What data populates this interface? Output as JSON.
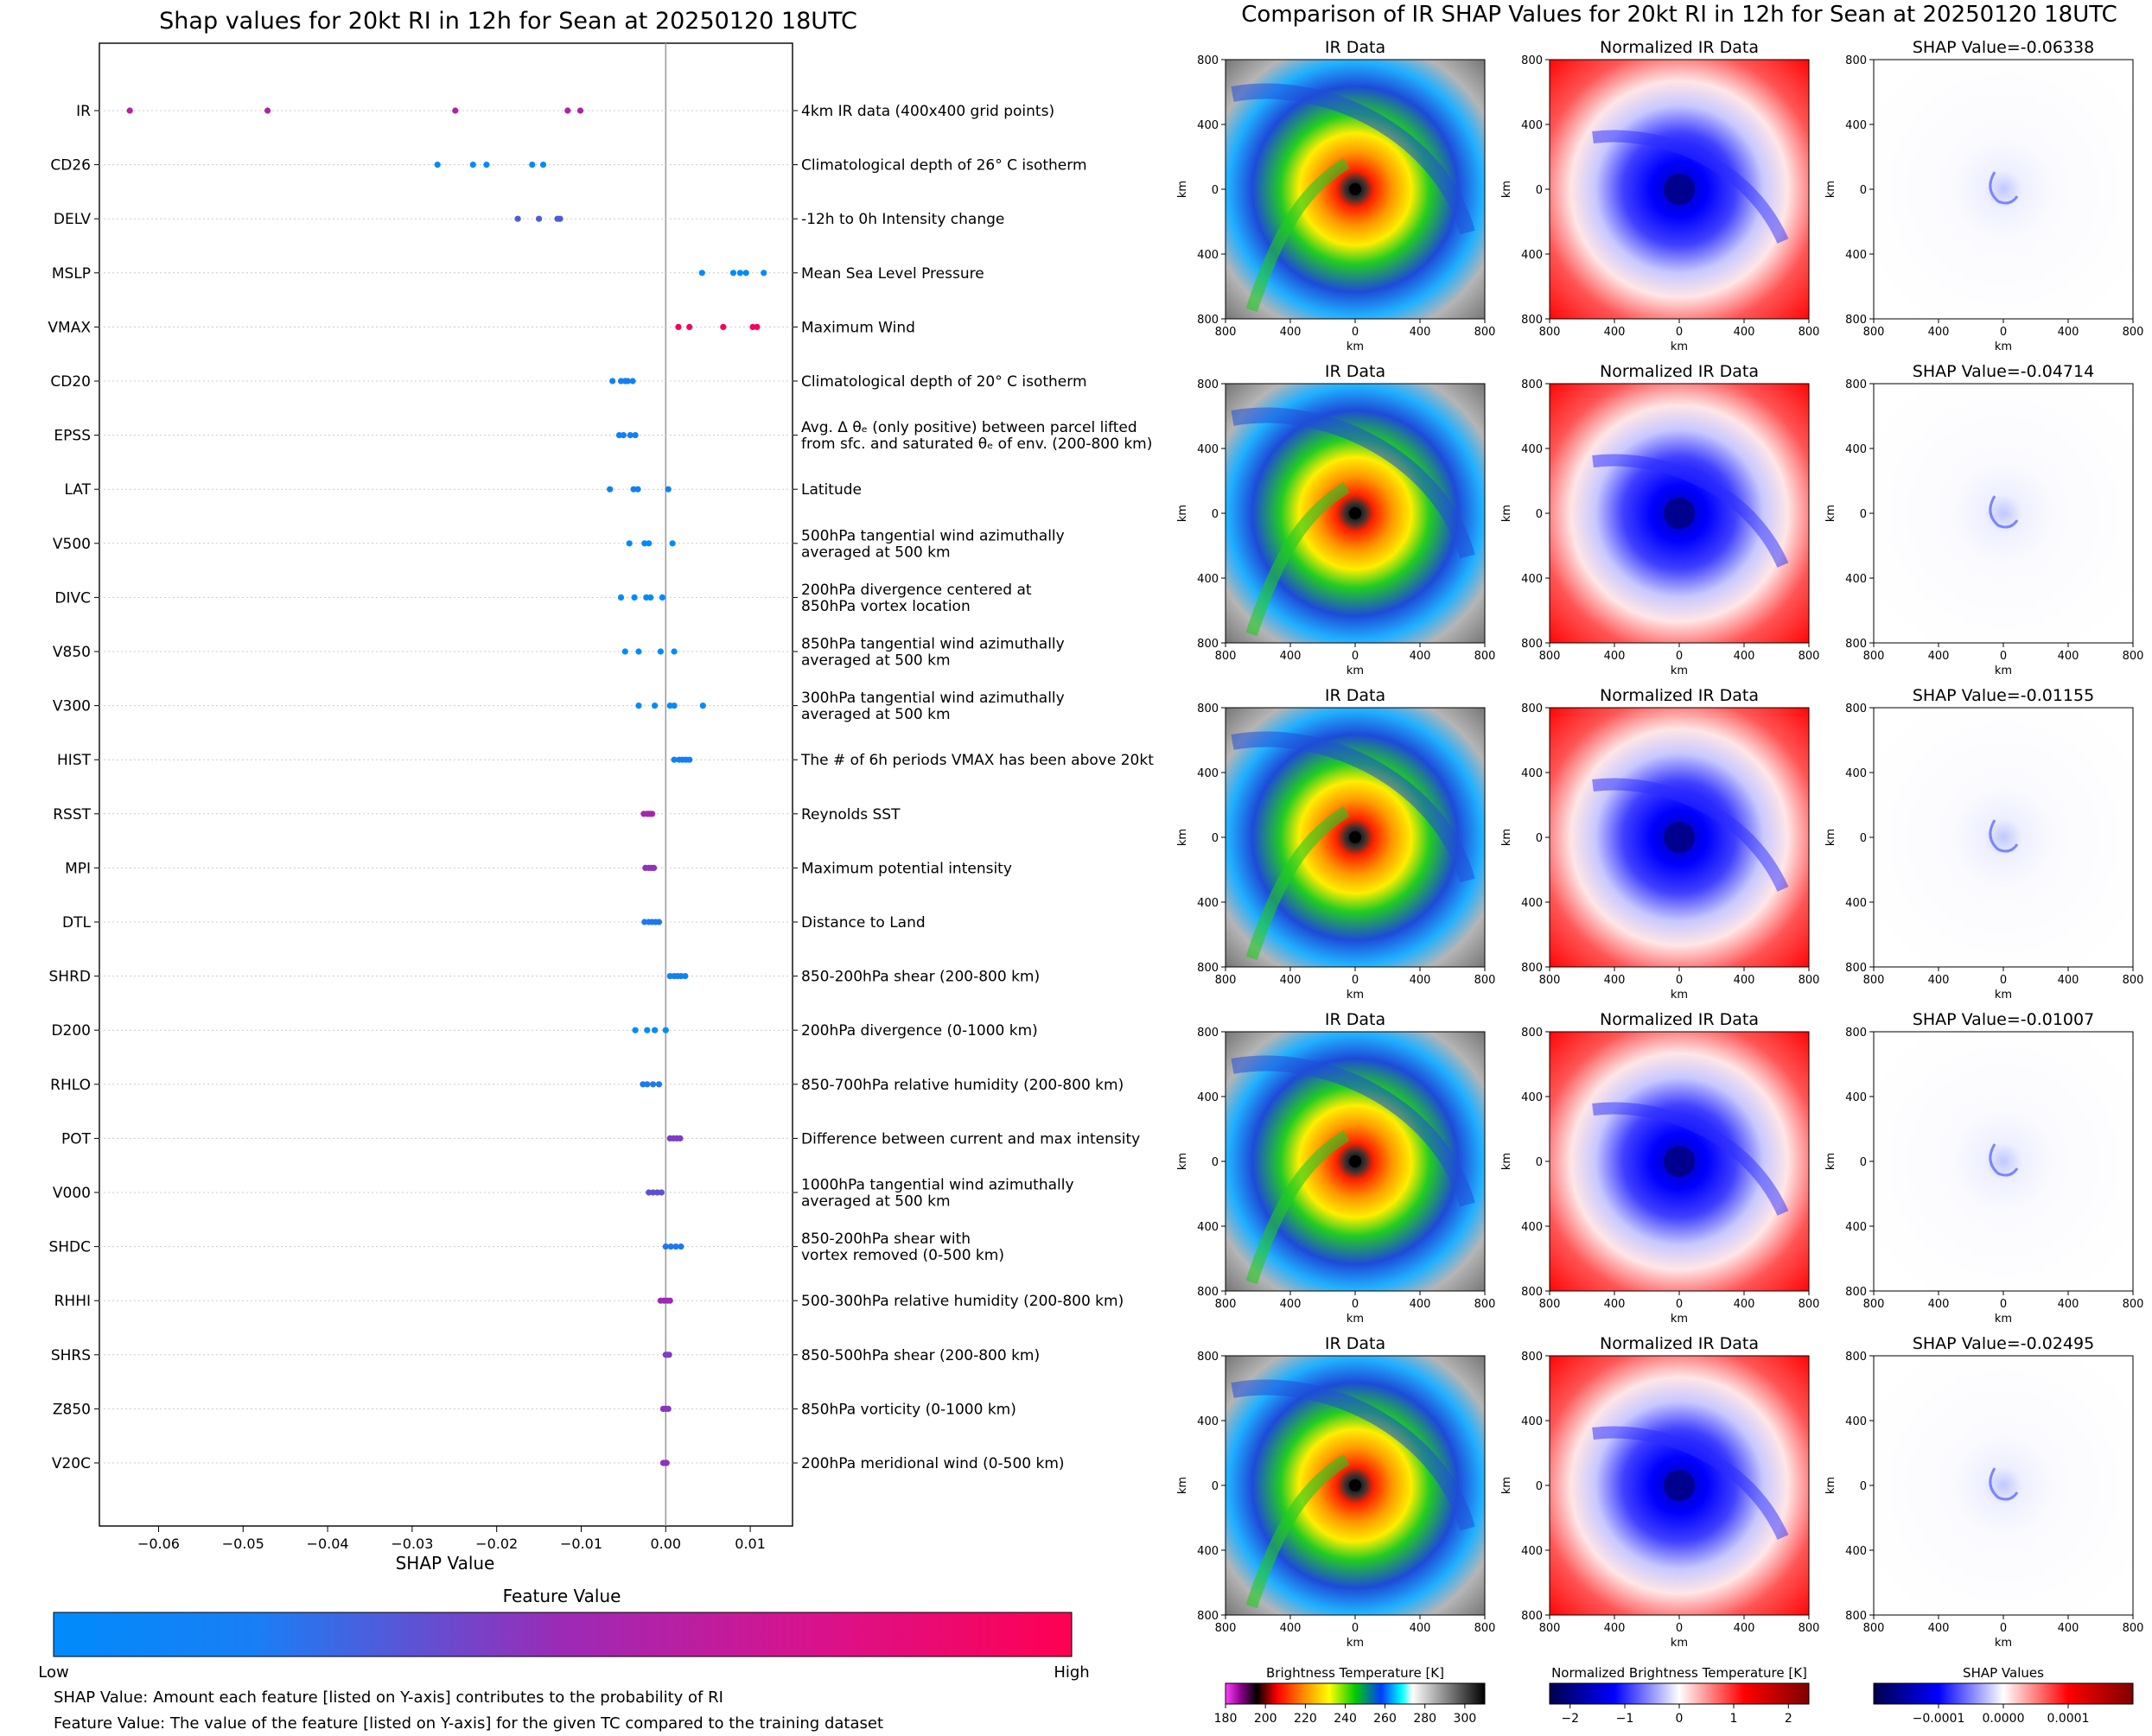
{
  "left": {
    "title": "Shap values for 20kt RI in 12h for Sean at 20250120 18UTC",
    "xlabel": "SHAP Value",
    "colorbar": {
      "title": "Feature Value",
      "low": "Low",
      "high": "High"
    },
    "notes": [
      "SHAP Value: Amount each feature [listed on Y-axis] contributes to the probability of RI",
      "Feature Value: The value of the feature [listed on Y-axis] for the given TC compared to the training dataset"
    ]
  },
  "right": {
    "title": "Comparison of IR SHAP Values for 20kt RI in 12h for Sean at 20250120 18UTC",
    "col_titles": [
      "IR Data",
      "Normalized IR Data"
    ],
    "shap_titles": [
      "SHAP Value=-0.06338",
      "SHAP Value=-0.04714",
      "SHAP Value=-0.01155",
      "SHAP Value=-0.01007",
      "SHAP Value=-0.02495"
    ],
    "axis_label": "km",
    "ticks": [
      "800",
      "400",
      "0",
      "400",
      "800"
    ],
    "colorbars": [
      {
        "label": "Brightness Temperature [K]",
        "ticks": [
          "180",
          "200",
          "220",
          "240",
          "260",
          "280",
          "300"
        ]
      },
      {
        "label": "Normalized Brightness Temperature [K]",
        "ticks": [
          "−2",
          "−1",
          "0",
          "1",
          "2"
        ]
      },
      {
        "label": "SHAP Values",
        "ticks": [
          "−0.0001",
          "0.0000",
          "0.0001"
        ]
      }
    ]
  },
  "chart_data": [
    {
      "type": "scatter",
      "title": "Shap values for 20kt RI in 12h for Sean at 20250120 18UTC",
      "xlabel": "SHAP Value",
      "ylabel": "",
      "xlim": [
        -0.067,
        0.015
      ],
      "xticks": [
        -0.06,
        -0.05,
        -0.04,
        -0.03,
        -0.02,
        -0.01,
        0.0,
        0.01
      ],
      "xtick_labels": [
        "−0.06",
        "−0.05",
        "−0.04",
        "−0.03",
        "−0.02",
        "−0.01",
        "0.00",
        "0.01"
      ],
      "color_low": "#008bfb",
      "color_high": "#ff0052",
      "features": [
        {
          "name": "IR",
          "desc": [
            "4km IR data (400x400 grid points)"
          ],
          "shap": [
            -0.0634,
            -0.0471,
            -0.0249,
            -0.0116,
            -0.0101
          ],
          "fv": 0.6
        },
        {
          "name": "CD26",
          "desc": [
            "Climatological depth of 26° C isotherm"
          ],
          "shap": [
            -0.027,
            -0.0228,
            -0.0212,
            -0.0158,
            -0.0145
          ],
          "fv": 0.0
        },
        {
          "name": "DELV",
          "desc": [
            "-12h to 0h Intensity change"
          ],
          "shap": [
            -0.0175,
            -0.015,
            -0.0128,
            -0.0125
          ],
          "fv": 0.25
        },
        {
          "name": "MSLP",
          "desc": [
            "Mean Sea Level Pressure"
          ],
          "shap": [
            0.0043,
            0.008,
            0.0088,
            0.0095,
            0.0116
          ],
          "fv": 0.0
        },
        {
          "name": "VMAX",
          "desc": [
            "Maximum Wind"
          ],
          "shap": [
            0.0015,
            0.0028,
            0.0068,
            0.0103,
            0.0108
          ],
          "fv": 0.95
        },
        {
          "name": "CD20",
          "desc": [
            "Climatological depth of 20° C isotherm"
          ],
          "shap": [
            -0.0063,
            -0.0053,
            -0.0048,
            -0.0045,
            -0.0039
          ],
          "fv": 0.05
        },
        {
          "name": "EPSS",
          "desc": [
            "Avg. Δ θₑ (only positive) between parcel lifted",
            "from sfc. and saturated θₑ of env. (200-800 km)"
          ],
          "shap": [
            -0.0055,
            -0.005,
            -0.0042,
            -0.0036
          ],
          "fv": 0.05
        },
        {
          "name": "LAT",
          "desc": [
            "Latitude"
          ],
          "shap": [
            -0.0066,
            -0.0038,
            -0.0033,
            0.0003
          ],
          "fv": 0.05
        },
        {
          "name": "V500",
          "desc": [
            "500hPa tangential wind azimuthally",
            "averaged at 500 km"
          ],
          "shap": [
            -0.0043,
            -0.0025,
            -0.002,
            0.0008
          ],
          "fv": 0.0
        },
        {
          "name": "DIVC",
          "desc": [
            "200hPa divergence centered at",
            "850hPa vortex location"
          ],
          "shap": [
            -0.0053,
            -0.0037,
            -0.0023,
            -0.0018,
            -0.0004
          ],
          "fv": 0.0
        },
        {
          "name": "V850",
          "desc": [
            "850hPa tangential wind azimuthally",
            "averaged at 500 km"
          ],
          "shap": [
            -0.0048,
            -0.0032,
            -0.0006,
            0.001
          ],
          "fv": 0.0
        },
        {
          "name": "V300",
          "desc": [
            "300hPa tangential wind azimuthally",
            "averaged at 500 km"
          ],
          "shap": [
            -0.0032,
            -0.0013,
            0.0005,
            0.001,
            0.0044
          ],
          "fv": 0.0
        },
        {
          "name": "HIST",
          "desc": [
            "The # of 6h periods VMAX has been above 20kt"
          ],
          "shap": [
            0.001,
            0.0016,
            0.002,
            0.0024,
            0.0028
          ],
          "fv": 0.05
        },
        {
          "name": "RSST",
          "desc": [
            "Reynolds SST"
          ],
          "shap": [
            -0.0026,
            -0.0022,
            -0.002,
            -0.0018,
            -0.0016
          ],
          "fv": 0.55
        },
        {
          "name": "MPI",
          "desc": [
            "Maximum potential intensity"
          ],
          "shap": [
            -0.0024,
            -0.002,
            -0.0017,
            -0.0014
          ],
          "fv": 0.45
        },
        {
          "name": "DTL",
          "desc": [
            "Distance to Land"
          ],
          "shap": [
            -0.0025,
            -0.002,
            -0.0016,
            -0.0012,
            -0.0008
          ],
          "fv": 0.1
        },
        {
          "name": "SHRD",
          "desc": [
            "850-200hPa shear (200-800 km)"
          ],
          "shap": [
            0.0005,
            0.001,
            0.0014,
            0.0018,
            0.0023
          ],
          "fv": 0.05
        },
        {
          "name": "D200",
          "desc": [
            "200hPa divergence (0-1000 km)"
          ],
          "shap": [
            -0.0036,
            -0.0022,
            -0.0013,
            0.0
          ],
          "fv": 0.0
        },
        {
          "name": "RHLO",
          "desc": [
            "850-700hPa relative humidity (200-800 km)"
          ],
          "shap": [
            -0.0027,
            -0.0022,
            -0.0015,
            -0.0008
          ],
          "fv": 0.1
        },
        {
          "name": "POT",
          "desc": [
            "Difference between current and max intensity"
          ],
          "shap": [
            0.0005,
            0.0009,
            0.0013,
            0.0017
          ],
          "fv": 0.4
        },
        {
          "name": "V000",
          "desc": [
            "1000hPa tangential wind azimuthally",
            "averaged at 500 km"
          ],
          "shap": [
            -0.002,
            -0.0015,
            -0.001,
            -0.0005
          ],
          "fv": 0.3
        },
        {
          "name": "SHDC",
          "desc": [
            "850-200hPa shear with",
            "vortex removed (0-500 km)"
          ],
          "shap": [
            0.0,
            0.0006,
            0.0012,
            0.0018
          ],
          "fv": 0.1
        },
        {
          "name": "RHHI",
          "desc": [
            "500-300hPa relative humidity (200-800 km)"
          ],
          "shap": [
            -0.0006,
            -0.0002,
            0.0002,
            0.0005
          ],
          "fv": 0.5
        },
        {
          "name": "SHRS",
          "desc": [
            "850-500hPa shear (200-800 km)"
          ],
          "shap": [
            0.0,
            0.0002,
            0.0004
          ],
          "fv": 0.4
        },
        {
          "name": "Z850",
          "desc": [
            "850hPa vorticity (0-1000 km)"
          ],
          "shap": [
            -0.0003,
            0.0,
            0.0003
          ],
          "fv": 0.45
        },
        {
          "name": "V20C",
          "desc": [
            "200hPa meridional wind (0-500 km)"
          ],
          "shap": [
            -0.0003,
            -0.0001,
            0.0001
          ],
          "fv": 0.45
        }
      ]
    },
    {
      "type": "heatmap",
      "title": "Comparison of IR SHAP Values for 20kt RI in 12h for Sean at 20250120 18UTC",
      "rows": 5,
      "columns": [
        "IR Data",
        "Normalized IR Data",
        "SHAP"
      ],
      "shap_values": [
        -0.06338,
        -0.04714,
        -0.01155,
        -0.01007,
        -0.02495
      ],
      "xlabel": "km",
      "ylabel": "km",
      "xlim": [
        -800,
        800
      ],
      "ylim": [
        -800,
        800
      ]
    }
  ]
}
